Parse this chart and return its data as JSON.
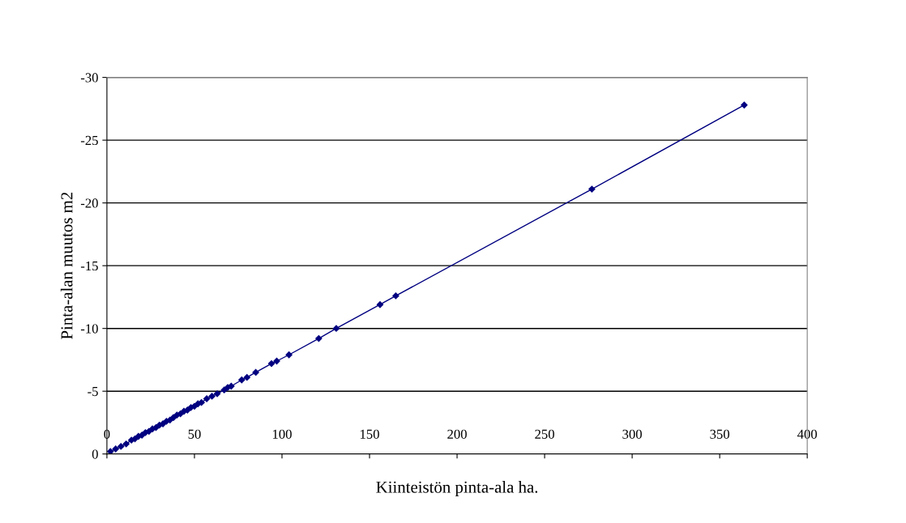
{
  "chart_data": {
    "type": "line",
    "xlabel": "Kiinteistön pinta-ala ha.",
    "ylabel": "Pinta-alan muutos m2",
    "xlim": [
      0,
      400
    ],
    "xticks": [
      0,
      50,
      100,
      150,
      200,
      250,
      300,
      350,
      400
    ],
    "ylim": [
      0,
      -30
    ],
    "yticks": [
      0,
      -5,
      -10,
      -15,
      -20,
      -25,
      -30
    ],
    "grid": "y",
    "marker": "diamond",
    "line_style": "solid",
    "series": [
      {
        "color": "#000080",
        "x": [
          2,
          5,
          8,
          11,
          14,
          16,
          18,
          20,
          22,
          24,
          26,
          28,
          30,
          32,
          34,
          36,
          38,
          40,
          42,
          44,
          46,
          48,
          50,
          52,
          54,
          57,
          60,
          63,
          67,
          69,
          71,
          77,
          80,
          85,
          94,
          97,
          104,
          121,
          131,
          156,
          165,
          277,
          364
        ],
        "values": [
          -0.2,
          -0.4,
          -0.6,
          -0.8,
          -1.1,
          -1.2,
          -1.4,
          -1.5,
          -1.7,
          -1.8,
          -2.0,
          -2.1,
          -2.3,
          -2.4,
          -2.6,
          -2.7,
          -2.9,
          -3.1,
          -3.2,
          -3.4,
          -3.5,
          -3.7,
          -3.8,
          -4.0,
          -4.1,
          -4.4,
          -4.6,
          -4.8,
          -5.1,
          -5.3,
          -5.4,
          -5.9,
          -6.1,
          -6.5,
          -7.2,
          -7.4,
          -7.9,
          -9.2,
          -10.0,
          -11.9,
          -12.6,
          -21.1,
          -27.8
        ]
      }
    ]
  }
}
